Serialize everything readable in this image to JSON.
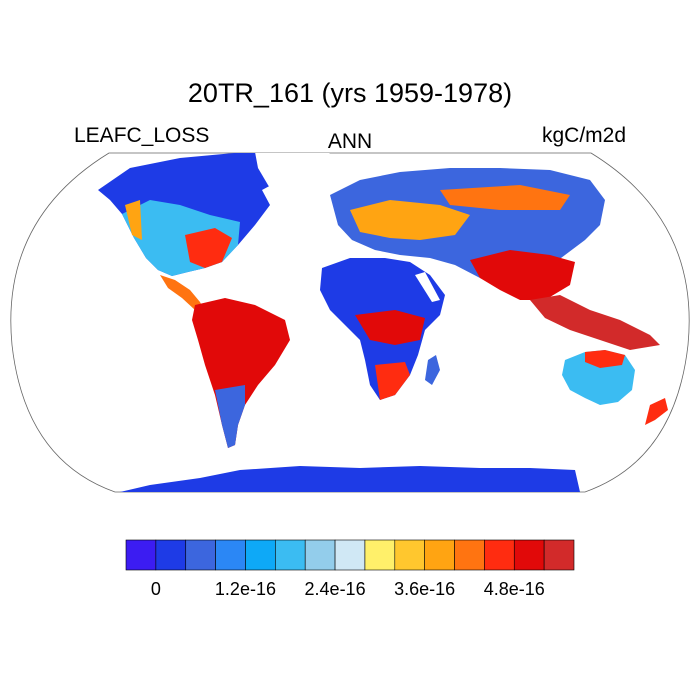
{
  "title": "20TR_161 (yrs 1959-1978)",
  "left_label": "LEAFC_LOSS",
  "center_label": "ANN",
  "right_label": "kgC/m2d",
  "colorbar": {
    "colors": [
      "#3c1cf2",
      "#1e3be6",
      "#3c66de",
      "#2b87f5",
      "#0ea9f7",
      "#3bbcf2",
      "#93cdeb",
      "#d0e8f5",
      "#fff06a",
      "#ffc72e",
      "#ffa412",
      "#ff7411",
      "#ff2c10",
      "#e10909",
      "#d22a2a"
    ],
    "tick_labels": [
      "0",
      "1.2e-16",
      "2.4e-16",
      "3.6e-16",
      "4.8e-16"
    ],
    "tick_boundaries": [
      1,
      4,
      7,
      10,
      13
    ]
  }
}
